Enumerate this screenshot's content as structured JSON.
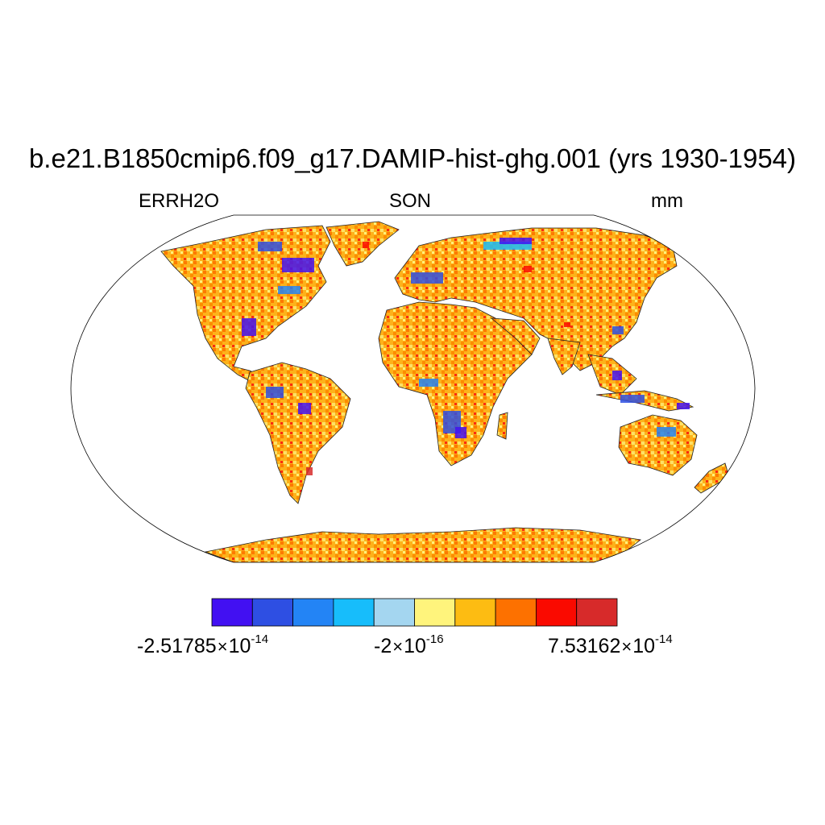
{
  "title": "b.e21.B1850cmip6.f09_g17.DAMIP-hist-ghg.001 (yrs 1930-1954)",
  "left_label": "ERRH2O",
  "center_label": "SON",
  "right_label": "mm",
  "colorbar": {
    "colors": [
      "#4210f2",
      "#2e4fe3",
      "#2384f5",
      "#17bdfb",
      "#a4d6f0",
      "#fff47c",
      "#fdbc12",
      "#fd7100",
      "#fa0a00",
      "#d72a2a"
    ],
    "labels": [
      {
        "mantissa": "-2.51785",
        "exponent": "-14"
      },
      {
        "mantissa": "-2",
        "exponent": "-16"
      },
      {
        "mantissa": "7.53162",
        "exponent": "-14"
      }
    ]
  },
  "map": {
    "projection": "Robinson",
    "field": "ERRH2O",
    "season": "SON",
    "units": "mm"
  }
}
